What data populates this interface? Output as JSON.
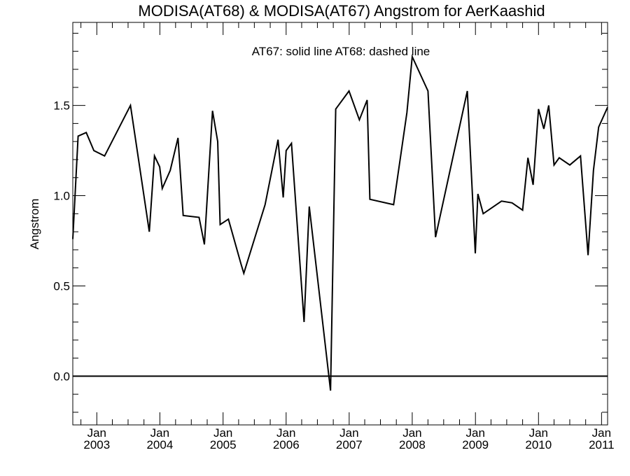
{
  "chart_data": {
    "type": "line",
    "title": "MODISA(AT68) & MODISA(AT67)  Angstrom for AerKaashid",
    "annotation": "AT67: solid line   AT68: dashed line",
    "ylabel": "Angstrom",
    "xlabel": "",
    "ylim": [
      -0.27,
      1.96
    ],
    "xlim": [
      "2002-08-15",
      "2011-02-05"
    ],
    "grid": false,
    "y_ticks": [
      {
        "value": 0.0,
        "label": "0.0"
      },
      {
        "value": 0.5,
        "label": "0.5"
      },
      {
        "value": 1.0,
        "label": "1.0"
      },
      {
        "value": 1.5,
        "label": "1.5"
      }
    ],
    "x_ticks": [
      {
        "date": "2003-01-01",
        "month": "Jan",
        "year": "2003"
      },
      {
        "date": "2004-01-01",
        "month": "Jan",
        "year": "2004"
      },
      {
        "date": "2005-01-01",
        "month": "Jan",
        "year": "2005"
      },
      {
        "date": "2006-01-01",
        "month": "Jan",
        "year": "2006"
      },
      {
        "date": "2007-01-01",
        "month": "Jan",
        "year": "2007"
      },
      {
        "date": "2008-01-01",
        "month": "Jan",
        "year": "2008"
      },
      {
        "date": "2009-01-01",
        "month": "Jan",
        "year": "2009"
      },
      {
        "date": "2010-01-01",
        "month": "Jan",
        "year": "2010"
      },
      {
        "date": "2011-01-01",
        "month": "Jan",
        "year": "2011"
      }
    ],
    "reference_line": {
      "y": 0.0
    },
    "series": [
      {
        "name": "AT67",
        "style": "solid",
        "color": "#000000",
        "points": [
          {
            "x": "2002-08-15",
            "y": 0.76
          },
          {
            "x": "2002-09-15",
            "y": 1.33
          },
          {
            "x": "2002-11-01",
            "y": 1.35
          },
          {
            "x": "2002-12-15",
            "y": 1.25
          },
          {
            "x": "2003-02-15",
            "y": 1.22
          },
          {
            "x": "2003-07-15",
            "y": 1.5
          },
          {
            "x": "2003-11-01",
            "y": 0.8
          },
          {
            "x": "2003-12-01",
            "y": 1.22
          },
          {
            "x": "2003-12-31",
            "y": 1.16
          },
          {
            "x": "2004-01-15",
            "y": 1.04
          },
          {
            "x": "2004-03-01",
            "y": 1.14
          },
          {
            "x": "2004-04-15",
            "y": 1.32
          },
          {
            "x": "2004-05-15",
            "y": 0.89
          },
          {
            "x": "2004-08-15",
            "y": 0.88
          },
          {
            "x": "2004-09-15",
            "y": 0.73
          },
          {
            "x": "2004-11-01",
            "y": 1.47
          },
          {
            "x": "2004-12-01",
            "y": 1.3
          },
          {
            "x": "2004-12-15",
            "y": 0.84
          },
          {
            "x": "2005-02-01",
            "y": 0.87
          },
          {
            "x": "2005-04-15",
            "y": 0.62
          },
          {
            "x": "2005-05-01",
            "y": 0.57
          },
          {
            "x": "2005-09-01",
            "y": 0.95
          },
          {
            "x": "2005-11-15",
            "y": 1.31
          },
          {
            "x": "2005-12-15",
            "y": 0.99
          },
          {
            "x": "2006-01-01",
            "y": 1.25
          },
          {
            "x": "2006-02-01",
            "y": 1.29
          },
          {
            "x": "2006-04-15",
            "y": 0.3
          },
          {
            "x": "2006-05-15",
            "y": 0.94
          },
          {
            "x": "2006-09-15",
            "y": -0.08
          },
          {
            "x": "2006-10-15",
            "y": 1.48
          },
          {
            "x": "2006-12-31",
            "y": 1.58
          },
          {
            "x": "2007-03-01",
            "y": 1.42
          },
          {
            "x": "2007-04-15",
            "y": 1.53
          },
          {
            "x": "2007-05-01",
            "y": 0.98
          },
          {
            "x": "2007-09-15",
            "y": 0.95
          },
          {
            "x": "2007-12-01",
            "y": 1.46
          },
          {
            "x": "2008-01-01",
            "y": 1.77
          },
          {
            "x": "2008-04-01",
            "y": 1.58
          },
          {
            "x": "2008-05-15",
            "y": 0.77
          },
          {
            "x": "2008-11-15",
            "y": 1.58
          },
          {
            "x": "2008-12-31",
            "y": 0.68
          },
          {
            "x": "2009-01-15",
            "y": 1.01
          },
          {
            "x": "2009-02-15",
            "y": 0.9
          },
          {
            "x": "2009-06-01",
            "y": 0.97
          },
          {
            "x": "2009-08-01",
            "y": 0.96
          },
          {
            "x": "2009-10-01",
            "y": 0.92
          },
          {
            "x": "2009-11-01",
            "y": 1.21
          },
          {
            "x": "2009-12-01",
            "y": 1.06
          },
          {
            "x": "2010-01-01",
            "y": 1.48
          },
          {
            "x": "2010-02-01",
            "y": 1.37
          },
          {
            "x": "2010-03-01",
            "y": 1.5
          },
          {
            "x": "2010-04-01",
            "y": 1.17
          },
          {
            "x": "2010-05-01",
            "y": 1.21
          },
          {
            "x": "2010-07-01",
            "y": 1.17
          },
          {
            "x": "2010-09-01",
            "y": 1.22
          },
          {
            "x": "2010-10-15",
            "y": 0.67
          },
          {
            "x": "2010-11-15",
            "y": 1.14
          },
          {
            "x": "2010-12-15",
            "y": 1.38
          },
          {
            "x": "2011-02-05",
            "y": 1.49
          }
        ]
      }
    ]
  }
}
